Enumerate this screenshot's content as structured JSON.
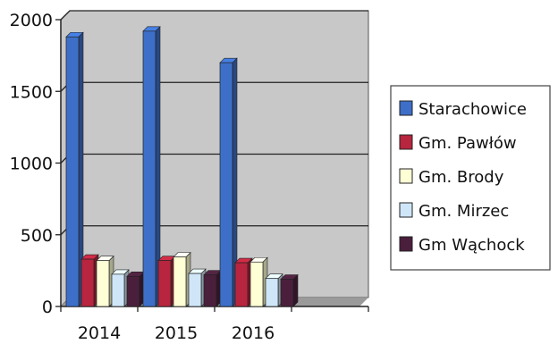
{
  "chart_data": {
    "type": "bar",
    "categories": [
      "2014",
      "2015",
      "2016"
    ],
    "extra_empty_category": true,
    "series": [
      {
        "name": "Starachowice",
        "values": [
          1880,
          1920,
          1700
        ],
        "color": "#3d6fc8"
      },
      {
        "name": "Gm. Pawłów",
        "values": [
          330,
          320,
          305
        ],
        "color": "#b8253e"
      },
      {
        "name": "Gm. Brody",
        "values": [
          320,
          345,
          310
        ],
        "color": "#ffffd6"
      },
      {
        "name": "Gm. Mirzec",
        "values": [
          225,
          230,
          195
        ],
        "color": "#cfe6f8"
      },
      {
        "name": "Gm Wąchock",
        "values": [
          210,
          220,
          190
        ],
        "color": "#4a1f3c"
      }
    ],
    "yticks": [
      0,
      500,
      1000,
      1500,
      2000
    ],
    "ylim": [
      0,
      2000
    ],
    "grid": true,
    "legend_position": "right",
    "plot_background": "#c8c8c8",
    "title": "",
    "xlabel": "",
    "ylabel": ""
  }
}
